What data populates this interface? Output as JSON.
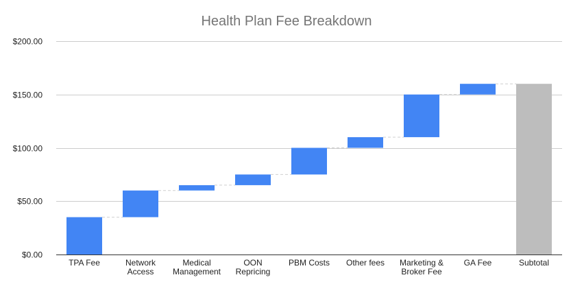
{
  "chart_data": {
    "type": "bar",
    "subtype": "waterfall",
    "title": "Health Plan Fee Breakdown",
    "xlabel": "",
    "ylabel": "",
    "ylim": [
      0,
      200
    ],
    "yticks": [
      0,
      50,
      100,
      150,
      200
    ],
    "ytick_labels": [
      "$0.00",
      "$50.00",
      "$100.00",
      "$150.00",
      "$200.00"
    ],
    "grid": true,
    "legend": "none",
    "categories": [
      [
        "TPA Fee"
      ],
      [
        "Network",
        "Access"
      ],
      [
        "Medical",
        "Management"
      ],
      [
        "OON",
        "Repricing"
      ],
      [
        "PBM Costs"
      ],
      [
        "Other fees"
      ],
      [
        "Marketing &",
        "Broker Fee"
      ],
      [
        "GA Fee"
      ],
      [
        "Subtotal"
      ]
    ],
    "values": [
      35,
      25,
      5,
      10,
      25,
      10,
      40,
      10,
      160
    ],
    "is_total": [
      false,
      false,
      false,
      false,
      false,
      false,
      false,
      false,
      true
    ],
    "colors": {
      "increase": "#4285f4",
      "total": "#bdbdbd"
    }
  }
}
